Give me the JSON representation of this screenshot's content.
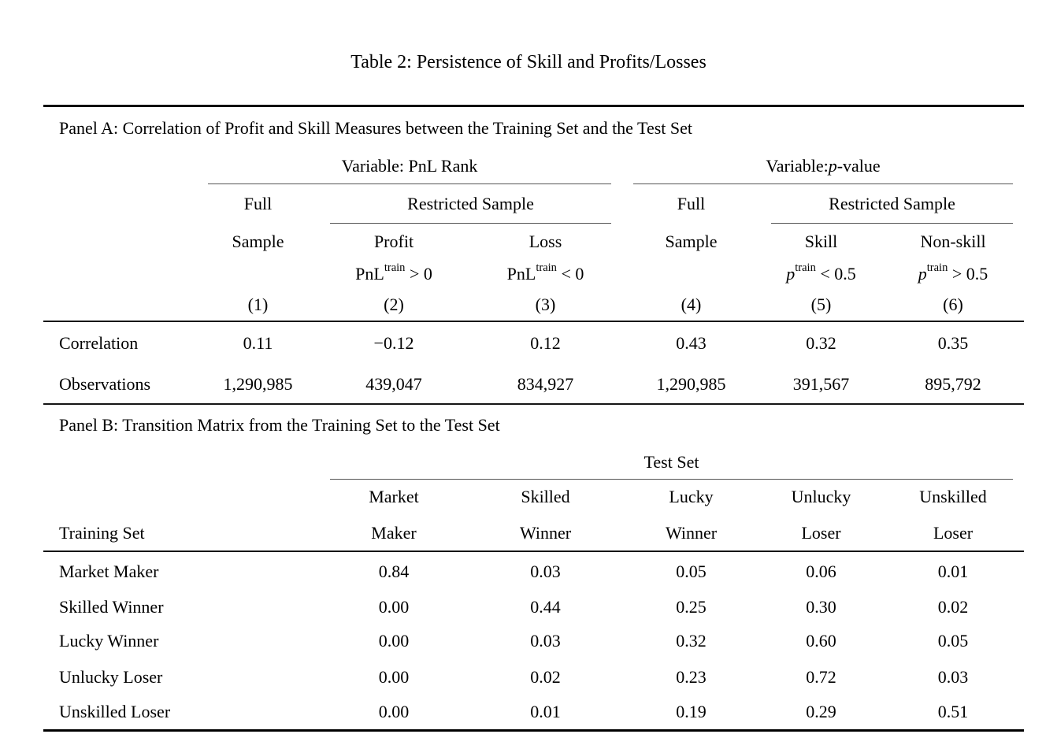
{
  "title": "Table 2: Persistence of Skill and Profits/Losses",
  "panel_a": {
    "heading": "Panel A: Correlation of Profit and Skill Measures between the Training Set and the Test Set",
    "variable_groups": {
      "pnl_rank": "Variable: PnL Rank",
      "p_value": {
        "prefix": "Variable: ",
        "italic": "p",
        "suffix": "-value"
      }
    },
    "subheaders": [
      "Full",
      "Restricted Sample",
      "Full",
      "Restricted Sample"
    ],
    "column_titles": [
      "Sample",
      "Profit",
      "Loss",
      "Sample",
      "Skill",
      "Non-skill"
    ],
    "conditions": [
      {
        "base": "PnL",
        "sup": "train",
        "rel": " > 0"
      },
      {
        "base": "PnL",
        "sup": "train",
        "rel": " < 0"
      },
      {
        "base": "p",
        "sup": "train",
        "rel": " < 0.5"
      },
      {
        "base": "p",
        "sup": "train",
        "rel": " > 0.5"
      }
    ],
    "column_numbers": [
      "(1)",
      "(2)",
      "(3)",
      "(4)",
      "(5)",
      "(6)"
    ],
    "rows": [
      {
        "label": "Correlation",
        "values": [
          "0.11",
          "−0.12",
          "0.12",
          "0.43",
          "0.32",
          "0.35"
        ]
      },
      {
        "label": "Observations",
        "values": [
          "1,290,985",
          "439,047",
          "834,927",
          "1,290,985",
          "391,567",
          "895,792"
        ]
      }
    ]
  },
  "panel_b": {
    "heading": "Panel B: Transition Matrix from the Training Set to the Test Set",
    "group_header": "Test Set",
    "row_header": "Training Set",
    "columns": [
      [
        "Market",
        "Maker"
      ],
      [
        "Skilled",
        "Winner"
      ],
      [
        "Lucky",
        "Winner"
      ],
      [
        "Unlucky",
        "Loser"
      ],
      [
        "Unskilled",
        "Loser"
      ]
    ],
    "rows": [
      {
        "label": "Market Maker",
        "values": [
          "0.84",
          "0.03",
          "0.05",
          "0.06",
          "0.01"
        ]
      },
      {
        "label": "Skilled Winner",
        "values": [
          "0.00",
          "0.44",
          "0.25",
          "0.30",
          "0.02"
        ]
      },
      {
        "label": "Lucky Winner",
        "values": [
          "0.00",
          "0.03",
          "0.32",
          "0.60",
          "0.05"
        ]
      },
      {
        "label": "Unlucky Loser",
        "values": [
          "0.00",
          "0.02",
          "0.23",
          "0.72",
          "0.03"
        ]
      },
      {
        "label": "Unskilled Loser",
        "values": [
          "0.00",
          "0.01",
          "0.19",
          "0.29",
          "0.51"
        ]
      }
    ]
  }
}
